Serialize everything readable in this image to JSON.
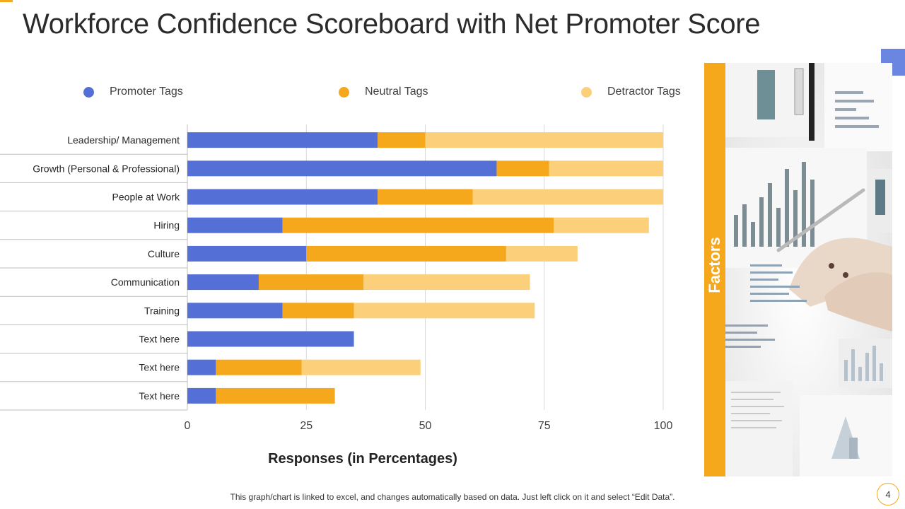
{
  "title": "Workforce Confidence Scoreboard with Net Promoter Score",
  "side_label": "Factors",
  "footnote": "This graph/chart is linked to excel, and changes automatically based on data. Just left click on it and select “Edit Data”.",
  "page_number": "4",
  "photo": {
    "subject": "hands-reviewing-charts-photo"
  },
  "colors": {
    "promoter": "#5470d6",
    "neutral": "#f6a81d",
    "detractor": "#fcd07a",
    "accent": "#f6a81d",
    "corner": "#6b86e0"
  },
  "chart_data": {
    "type": "bar",
    "orientation": "horizontal",
    "stacked": true,
    "title": "",
    "xlabel": "Responses  (in Percentages)",
    "ylabel": "",
    "xlim": [
      0,
      100
    ],
    "xticks": [
      0,
      25,
      50,
      75,
      100
    ],
    "grid": true,
    "legend_position": "top",
    "categories": [
      "Leadership/ Management",
      "Growth (Personal & Professional)",
      "People at Work",
      "Hiring",
      "Culture",
      "Communication",
      "Training",
      "Text here",
      "Text here",
      "Text here"
    ],
    "series": [
      {
        "name": "Promoter Tags",
        "values": [
          40,
          65,
          40,
          20,
          25,
          15,
          20,
          35,
          6,
          6
        ]
      },
      {
        "name": "Neutral Tags",
        "values": [
          10,
          11,
          20,
          57,
          42,
          22,
          15,
          0,
          18,
          25
        ]
      },
      {
        "name": "Detractor Tags",
        "values": [
          50,
          24,
          40,
          20,
          15,
          35,
          38,
          0,
          25,
          0
        ]
      }
    ]
  }
}
